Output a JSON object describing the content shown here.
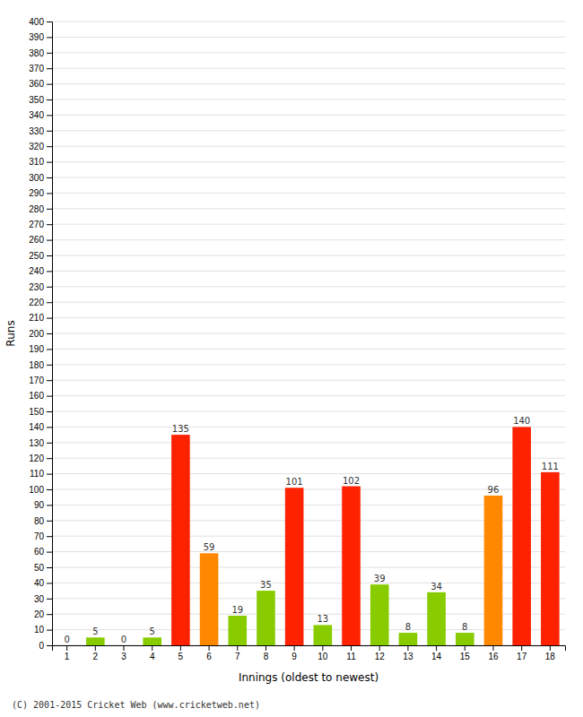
{
  "chart_data": {
    "type": "bar",
    "xlabel": "Innings (oldest to newest)",
    "ylabel": "Runs",
    "categories": [
      "1",
      "2",
      "3",
      "4",
      "5",
      "6",
      "7",
      "8",
      "9",
      "10",
      "11",
      "12",
      "13",
      "14",
      "15",
      "16",
      "17",
      "18"
    ],
    "values": [
      0,
      5,
      0,
      5,
      135,
      59,
      19,
      35,
      101,
      13,
      102,
      39,
      8,
      34,
      8,
      96,
      140,
      111
    ],
    "colors": [
      "#88cc00",
      "#88cc00",
      "#88cc00",
      "#88cc00",
      "#ff2200",
      "#ff8800",
      "#88cc00",
      "#88cc00",
      "#ff2200",
      "#88cc00",
      "#ff2200",
      "#88cc00",
      "#88cc00",
      "#88cc00",
      "#88cc00",
      "#ff8800",
      "#ff2200",
      "#ff2200"
    ],
    "ylim": [
      0,
      400
    ],
    "yticks": [
      0,
      10,
      20,
      30,
      40,
      50,
      60,
      70,
      80,
      90,
      100,
      110,
      120,
      130,
      140,
      150,
      160,
      170,
      180,
      190,
      200,
      210,
      220,
      230,
      240,
      250,
      260,
      270,
      280,
      290,
      300,
      310,
      320,
      330,
      340,
      350,
      360,
      370,
      380,
      390,
      400
    ],
    "grid": true,
    "data_labels": true,
    "annotations": [
      "(C) 2001-2015 Cricket Web (www.cricketweb.net)"
    ]
  }
}
